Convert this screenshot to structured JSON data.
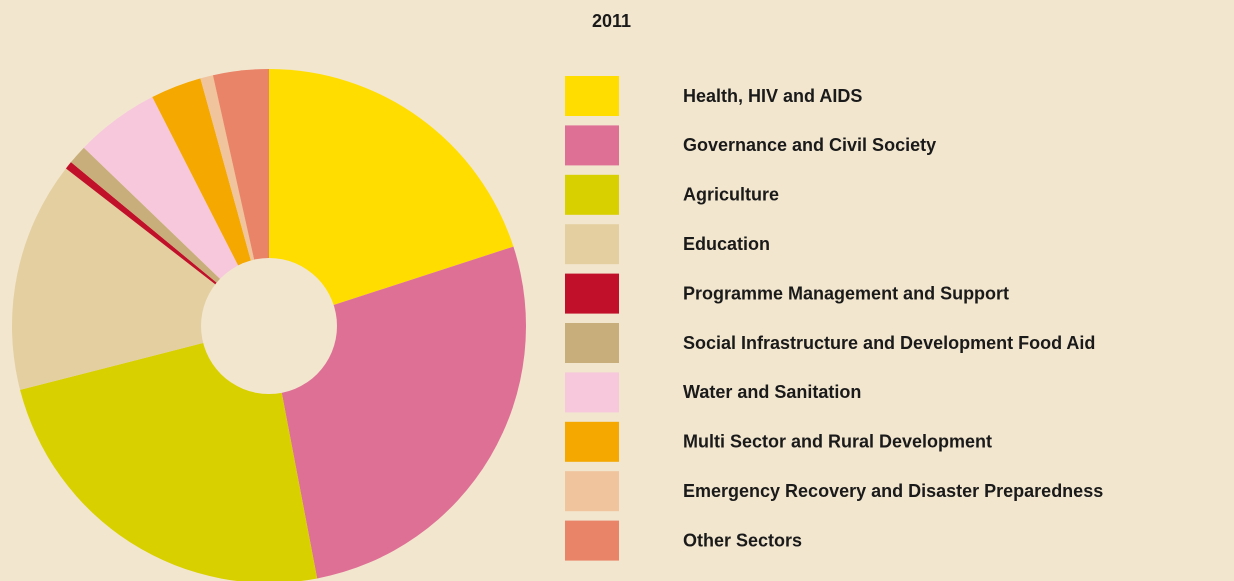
{
  "chart_data": {
    "type": "pie",
    "title": "2011",
    "categories": [
      "Health, HIV and AIDS",
      "Governance and Civil Society",
      "Agriculture",
      "Education",
      "Programme Management and Support",
      "Social Infrastructure and Development  Food Aid",
      "Water and Sanitation",
      "Multi Sector and Rural Development",
      "Emergency Recovery and Disaster Preparedness",
      "Other Sectors"
    ],
    "values": [
      20,
      27,
      24,
      14.5,
      0.5,
      1.2,
      5.3,
      3.2,
      0.8,
      3.5
    ],
    "colors": [
      "#ffdd00",
      "#de7096",
      "#d9d000",
      "#e4cfa0",
      "#c0102a",
      "#c8ae7a",
      "#f7c7dc",
      "#f5a800",
      "#f0c49c",
      "#ea8468"
    ],
    "legend": "right"
  }
}
